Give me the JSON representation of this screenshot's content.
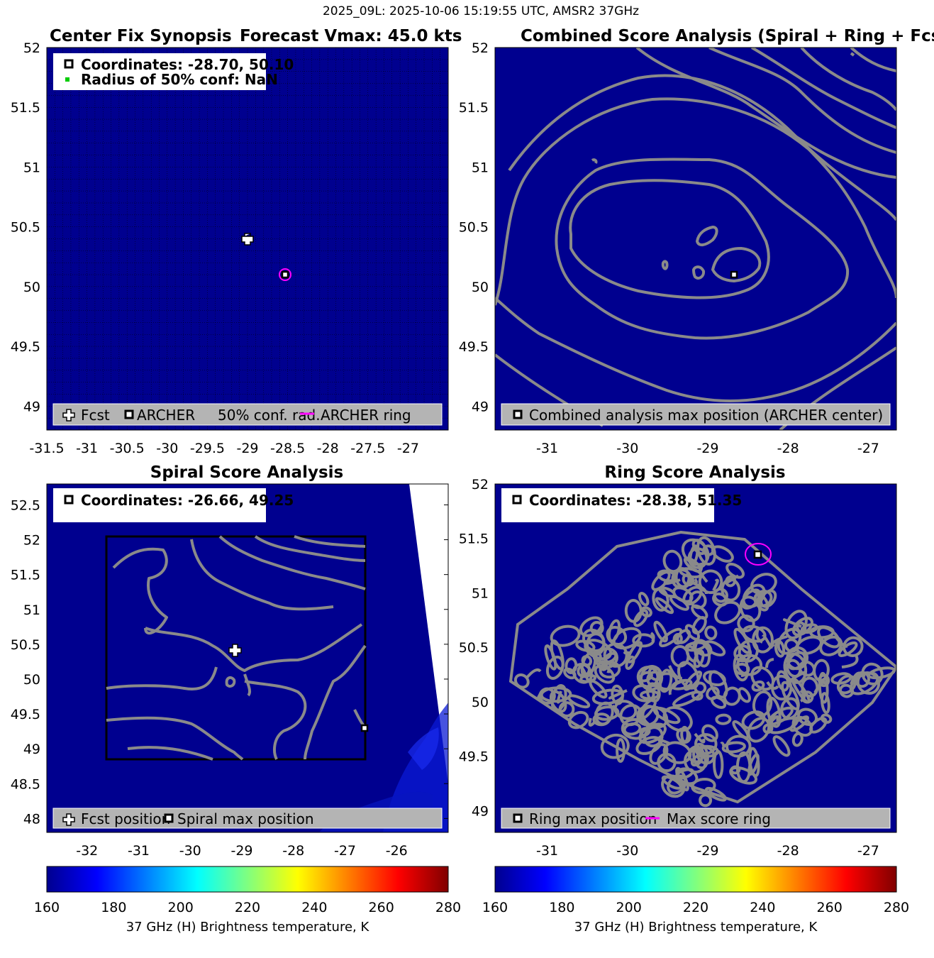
{
  "suptitle": "2025_09L: 2025-10-06 15:19:55 UTC, AMSR2 37GHz",
  "colors": {
    "background": "#00008f",
    "contour": "#8a8a8a",
    "legend_bg": "#b4b4b4",
    "magenta": "#ff00ff",
    "green": "#00cc00"
  },
  "chart_data": [
    {
      "type": "heatmap",
      "title": "Center Fix Synopsis",
      "title_right": "Forecast Vmax: 45.0 kts",
      "xlim": [
        -31.5,
        -26.5
      ],
      "ylim": [
        48.8,
        52
      ],
      "xticks": [
        "-31.5",
        "-31",
        "-30.5",
        "-30",
        "-29.5",
        "-29",
        "-28.5",
        "-28",
        "-27.5",
        "-27"
      ],
      "yticks": [
        "52",
        "51.5",
        "51",
        "50.5",
        "50",
        "49.5",
        "49"
      ],
      "grid": true,
      "info": [
        "Coordinates: -28.70, 50.10",
        "Radius of 50% conf: NaN"
      ],
      "legend": [
        "Fcst",
        "ARCHER",
        "50% conf. rad.",
        "ARCHER ring"
      ],
      "legend_placement": "bottom",
      "points": {
        "fcst": [
          -29.17,
          50.4
        ],
        "archer": [
          -28.7,
          50.1
        ]
      }
    },
    {
      "type": "heatmap",
      "title": "Combined Score Analysis (Spiral + Ring + Fcst_Pe",
      "xlim": [
        -31.65,
        -26.65
      ],
      "ylim": [
        48.8,
        52
      ],
      "xticks": [
        "-31",
        "-30",
        "-29",
        "-28",
        "-27"
      ],
      "yticks": [
        "52",
        "51.5",
        "51",
        "50.5",
        "50",
        "49.5",
        "49"
      ],
      "legend": [
        "Combined analysis max position (ARCHER center)"
      ],
      "legend_placement": "bottom",
      "points": {
        "max": [
          -28.7,
          50.1
        ]
      }
    },
    {
      "type": "heatmap",
      "title": "Spiral Score Analysis",
      "xlim": [
        -32.78,
        -25.0
      ],
      "ylim": [
        47.8,
        52.8
      ],
      "xticks": [
        "-32",
        "-31",
        "-30",
        "-29",
        "-28",
        "-27",
        "-26"
      ],
      "yticks": [
        "52.5",
        "52",
        "51.5",
        "51",
        "50.5",
        "50",
        "49.5",
        "49",
        "48.5",
        "48"
      ],
      "info": [
        "Coordinates: -26.66, 49.25"
      ],
      "legend": [
        "Fcst position",
        "Spiral max position"
      ],
      "legend_placement": "bottom",
      "points": {
        "fcst": [
          -29.3,
          50.4
        ],
        "max": [
          -26.66,
          49.25
        ]
      }
    },
    {
      "type": "heatmap",
      "title": "Ring Score Analysis",
      "xlim": [
        -31.65,
        -26.65
      ],
      "ylim": [
        48.8,
        52
      ],
      "xticks": [
        "-31",
        "-30",
        "-29",
        "-28",
        "-27"
      ],
      "yticks": [
        "52",
        "51.5",
        "51",
        "50.5",
        "50",
        "49.5",
        "49"
      ],
      "info": [
        "Coordinates: -28.38, 51.35"
      ],
      "legend": [
        "Ring max position",
        "Max score ring"
      ],
      "legend_placement": "bottom",
      "points": {
        "max": [
          -28.38,
          51.35
        ]
      }
    }
  ],
  "colorbar": {
    "ticks": [
      "160",
      "180",
      "200",
      "220",
      "240",
      "260",
      "280"
    ],
    "label": "37 GHz (H) Brightness temperature, K",
    "range": [
      160,
      280
    ]
  }
}
